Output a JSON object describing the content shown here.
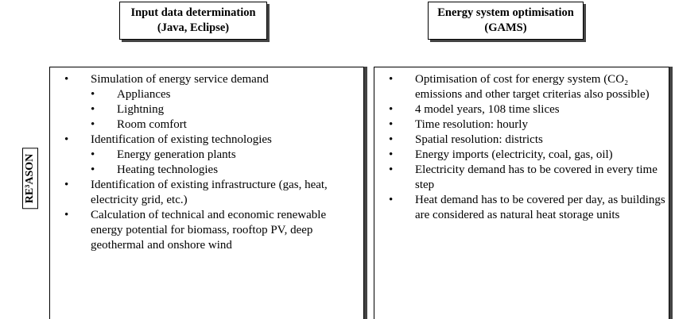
{
  "label": "RE³ASON",
  "columns": [
    {
      "title": "Input data determination",
      "subtitle": "(Java, Eclipse)",
      "items": [
        {
          "text": "Simulation of energy service demand",
          "sub": [
            "Appliances",
            "Lightning",
            "Room comfort"
          ]
        },
        {
          "text": "Identification of existing technologies",
          "sub": [
            "Energy generation plants",
            "Heating technologies"
          ]
        },
        {
          "text": "Identification of existing infrastructure (gas, heat, electricity grid, etc.)"
        },
        {
          "text": "Calculation of technical and economic renewable energy potential for biomass, rooftop PV, deep geothermal and onshore wind"
        }
      ]
    },
    {
      "title": "Energy system optimisation",
      "subtitle": "(GAMS)",
      "items": [
        {
          "text": "Optimisation of cost for energy system (CO₂ emissions and other target criterias also possible)"
        },
        {
          "text": "4 model years, 108 time slices"
        },
        {
          "text": "Time resolution: hourly"
        },
        {
          "text": "Spatial resolution: districts"
        },
        {
          "text": "Energy imports (electricity, coal, gas, oil)"
        },
        {
          "text": "Electricity demand has to be covered in every time step"
        },
        {
          "text": "Heat demand has to be covered per day, as buildings are considered as natural heat storage units"
        }
      ]
    }
  ]
}
